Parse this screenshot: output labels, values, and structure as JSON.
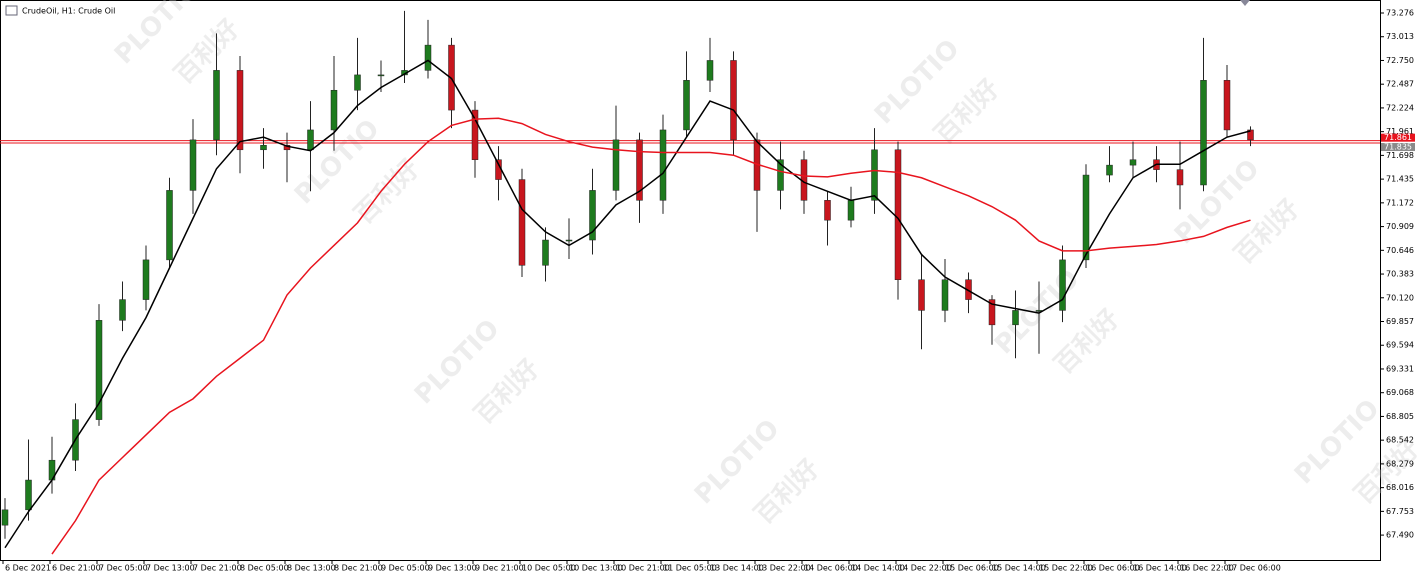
{
  "chart_data": {
    "type": "candlestick",
    "title": "CrudeOil, H1:  Crude Oil",
    "watermark": [
      "PLOTIO",
      "百利好"
    ],
    "categories": [
      "6 Dec 2021",
      null,
      "6 Dec 21:00",
      null,
      "7 Dec 05:00",
      null,
      "7 Dec 13:00",
      null,
      "7 Dec 21:00",
      null,
      "8 Dec 05:00",
      null,
      "8 Dec 13:00",
      null,
      "8 Dec 21:00",
      null,
      "9 Dec 05:00",
      null,
      "9 Dec 13:00",
      null,
      "9 Dec 21:00",
      null,
      "10 Dec 05:00",
      null,
      "10 Dec 13:00",
      null,
      "10 Dec 21:00",
      null,
      "11 Dec 05:00",
      null,
      "13 Dec 14:00",
      null,
      "13 Dec 22:00",
      null,
      "14 Dec 06:00",
      null,
      "14 Dec 14:00",
      null,
      "14 Dec 22:00",
      null,
      "15 Dec 06:00",
      null,
      "15 Dec 14:00",
      null,
      "15 Dec 22:00",
      null,
      "16 Dec 06:00",
      null,
      "16 Dec 14:00",
      null,
      "16 Dec 22:00",
      null,
      "17 Dec 06:00",
      null
    ],
    "open": [
      67.6,
      67.77,
      68.1,
      68.32,
      68.77,
      69.87,
      70.1,
      70.54,
      71.31,
      71.87,
      72.64,
      71.76,
      71.81,
      71.76,
      71.98,
      72.42,
      72.59,
      72.59,
      72.64,
      72.92,
      72.2,
      71.65,
      71.43,
      70.48,
      70.76,
      70.76,
      71.31,
      71.87,
      71.2,
      71.98,
      72.53,
      72.75,
      71.87,
      71.31,
      71.65,
      71.2,
      70.98,
      71.2,
      71.76,
      70.32,
      69.98,
      70.32,
      70.1,
      69.82,
      69.98,
      69.98,
      70.54,
      71.48,
      71.59,
      71.65,
      71.54,
      71.37,
      72.53,
      71.98
    ],
    "high": [
      67.9,
      68.55,
      68.58,
      68.95,
      70.05,
      70.3,
      70.7,
      71.45,
      72.1,
      73.05,
      72.8,
      72.0,
      71.95,
      72.3,
      72.8,
      73.0,
      72.75,
      73.3,
      73.2,
      73.0,
      72.3,
      71.8,
      71.55,
      70.9,
      71.0,
      71.55,
      72.25,
      71.95,
      72.15,
      72.85,
      73.0,
      72.85,
      71.95,
      71.85,
      71.75,
      71.3,
      71.35,
      72.0,
      71.85,
      70.6,
      70.55,
      70.4,
      70.15,
      70.2,
      70.3,
      70.7,
      71.6,
      71.8,
      71.85,
      71.8,
      71.85,
      73.0,
      72.7,
      72.02
    ],
    "low": [
      67.45,
      67.65,
      67.95,
      68.2,
      68.7,
      69.75,
      69.98,
      70.45,
      71.05,
      71.7,
      71.5,
      71.55,
      71.4,
      71.3,
      71.75,
      72.2,
      72.4,
      72.5,
      72.55,
      72.0,
      71.45,
      71.2,
      70.35,
      70.3,
      70.55,
      70.6,
      71.2,
      70.95,
      71.05,
      71.9,
      72.4,
      71.7,
      70.85,
      71.1,
      71.05,
      70.7,
      70.9,
      71.05,
      70.1,
      69.55,
      69.85,
      69.95,
      69.6,
      69.45,
      69.5,
      69.85,
      70.45,
      71.4,
      71.45,
      71.4,
      71.1,
      71.3,
      71.9,
      71.8
    ],
    "close": [
      67.77,
      68.1,
      68.32,
      68.77,
      69.87,
      70.1,
      70.54,
      71.31,
      71.87,
      72.64,
      71.76,
      71.81,
      71.76,
      71.98,
      72.42,
      72.59,
      72.59,
      72.64,
      72.92,
      72.2,
      71.65,
      71.43,
      70.48,
      70.76,
      70.76,
      71.31,
      71.87,
      71.2,
      71.98,
      72.53,
      72.75,
      71.87,
      71.31,
      71.65,
      71.2,
      70.98,
      71.2,
      71.76,
      70.32,
      69.98,
      70.32,
      70.1,
      69.82,
      69.98,
      69.98,
      70.54,
      71.48,
      71.59,
      71.65,
      71.54,
      71.37,
      72.53,
      71.98,
      71.87
    ],
    "up_color": "#1e7b1e",
    "down_color": "#c8161e",
    "wick_color": "#222222",
    "series": [
      {
        "color": "#000000",
        "values": [
          67.35,
          67.75,
          68.1,
          68.55,
          68.95,
          69.45,
          69.9,
          70.45,
          71.0,
          71.55,
          71.85,
          71.9,
          71.8,
          71.75,
          71.95,
          72.25,
          72.45,
          72.6,
          72.75,
          72.55,
          72.1,
          71.6,
          71.1,
          70.85,
          70.7,
          70.85,
          71.15,
          71.3,
          71.5,
          71.9,
          72.3,
          72.2,
          71.85,
          71.6,
          71.4,
          71.3,
          71.2,
          71.25,
          71.0,
          70.6,
          70.35,
          70.2,
          70.05,
          70.0,
          69.95,
          70.1,
          70.6,
          71.05,
          71.45,
          71.6,
          71.6,
          71.75,
          71.9,
          71.97
        ]
      },
      {
        "color": "#e8141e",
        "values": [
          null,
          null,
          67.28,
          67.65,
          68.1,
          68.35,
          68.6,
          68.85,
          69.0,
          69.25,
          69.45,
          69.65,
          70.15,
          70.45,
          70.7,
          70.95,
          71.3,
          71.6,
          71.85,
          72.03,
          72.1,
          72.11,
          72.05,
          71.93,
          71.85,
          71.79,
          71.76,
          71.74,
          71.73,
          71.73,
          71.73,
          71.7,
          71.6,
          71.52,
          71.47,
          71.46,
          71.5,
          71.53,
          71.51,
          71.45,
          71.35,
          71.25,
          71.13,
          70.98,
          70.75,
          70.64,
          70.64,
          70.67,
          70.69,
          70.71,
          70.75,
          70.8,
          70.9,
          70.98
        ]
      }
    ],
    "price_lines": [
      71.861,
      71.835
    ],
    "price_line_color": "#e8141e",
    "ylim": [
      67.214,
      73.42
    ],
    "yticks": [
      73.276,
      73.013,
      {
        "value": 72.75,
        "label": "72.750"
      },
      72.487,
      72.224,
      71.961,
      71.698,
      71.435,
      71.172,
      70.909,
      70.646,
      70.383,
      {
        "value": 70.12,
        "label": "70.120"
      },
      69.857,
      69.594,
      69.331,
      69.068,
      68.805,
      68.542,
      68.279,
      68.016,
      67.753,
      {
        "value": 67.49,
        "label": "67.490"
      }
    ]
  }
}
